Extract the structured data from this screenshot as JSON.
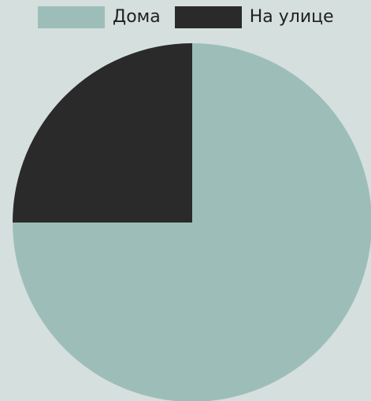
{
  "chart_data": {
    "type": "pie",
    "title": "",
    "legend_position": "top",
    "slices": [
      {
        "label": "Дома",
        "value": 75,
        "color": "#9dbeb8"
      },
      {
        "label": "На улице",
        "value": 25,
        "color": "#2a2a2a"
      }
    ]
  }
}
